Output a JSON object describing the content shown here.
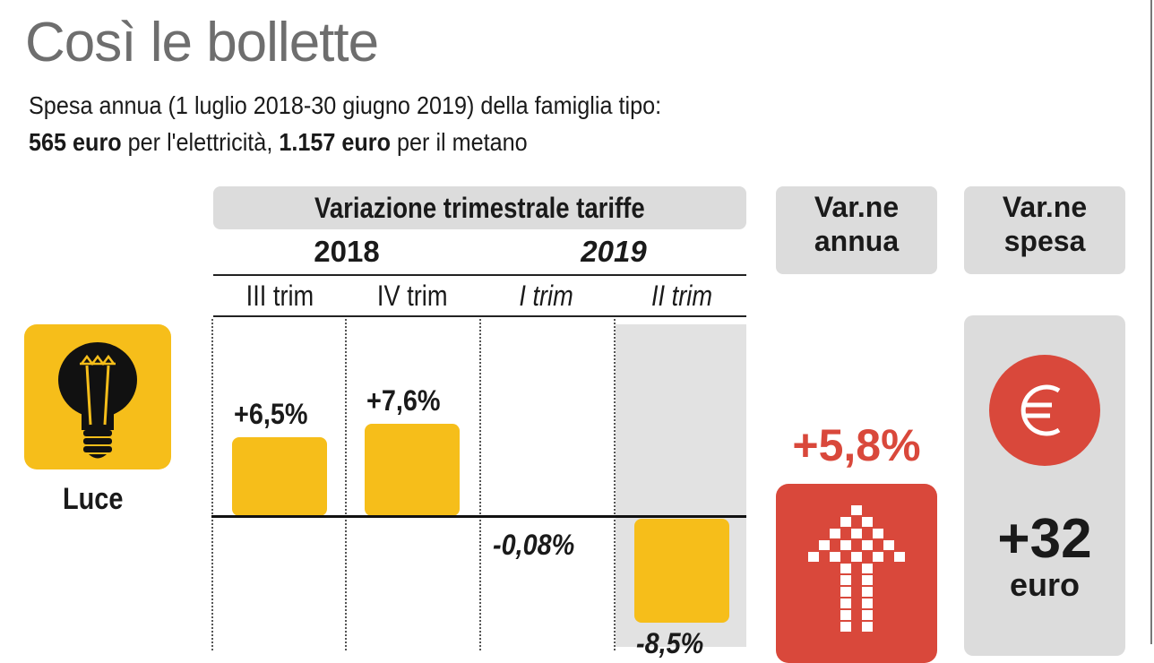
{
  "title": "Così le bollette",
  "subtitle_line1": "Spesa annua (1 luglio 2018-30 giugno 2019) della famiglia tipo:",
  "subtitle_line2": {
    "elec_amount": "565 euro",
    "elec_text": " per l'elettricità, ",
    "gas_amount": "1.157 euro",
    "gas_text": " per il metano"
  },
  "headers": {
    "main": "Variazione trimestrale tariffe",
    "annual_line1": "Var.ne",
    "annual_line2": "annua",
    "spend_line1": "Var.ne",
    "spend_line2": "spesa"
  },
  "years": [
    "2018",
    "2019"
  ],
  "colors": {
    "bar": "#f6be1a",
    "accent": "#d9483b",
    "pill": "#dcdcdc"
  },
  "row": {
    "label": "Luce",
    "icon": "light-bulb-icon",
    "annual_change": "+5,8%",
    "annual_icon": "up-arrow-icon",
    "spend_icon": "euro-icon",
    "spend_change": "+32",
    "spend_unit": "euro"
  },
  "chart_data": {
    "type": "bar",
    "categories": [
      "III trim",
      "IV trim",
      "I trim",
      "II trim"
    ],
    "values": [
      6.5,
      7.6,
      -0.08,
      -8.5
    ],
    "labels": [
      "+6,5%",
      "+7,6%",
      "-0,08%",
      "-8,5%"
    ]
  }
}
